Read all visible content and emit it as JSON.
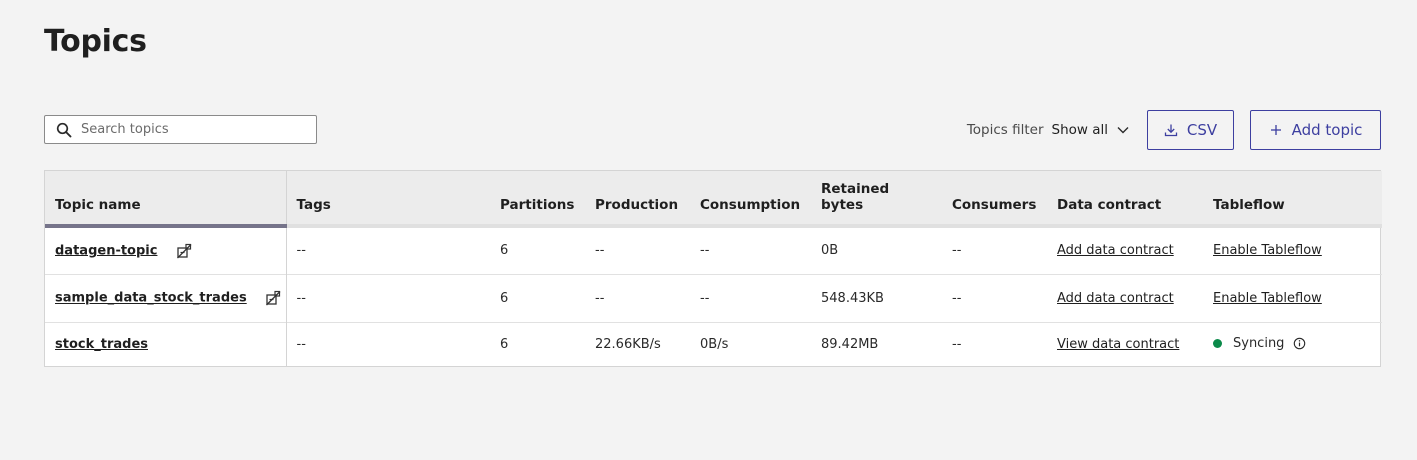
{
  "page": {
    "title": "Topics"
  },
  "search": {
    "placeholder": "Search topics",
    "value": ""
  },
  "filter": {
    "label": "Topics filter",
    "value": "Show all"
  },
  "buttons": {
    "csv": "CSV",
    "add_topic": "Add topic"
  },
  "colors": {
    "accent": "#3d3fa0",
    "syncing": "#0b8a4a",
    "background": "#f3f3f3"
  },
  "table": {
    "columns": [
      "Topic name",
      "Tags",
      "Partitions",
      "Production",
      "Consumption",
      "Retained bytes",
      "Consumers",
      "Data contract",
      "Tableflow"
    ],
    "rows": [
      {
        "name": "datagen-topic",
        "icon": "no-schema-icon",
        "tags": "--",
        "partitions": "6",
        "production": "--",
        "consumption": "--",
        "retained": "0B",
        "consumers": "--",
        "data_contract": "Add data contract",
        "tableflow": "Enable Tableflow"
      },
      {
        "name": "sample_data_stock_trades",
        "icon": "no-schema-icon",
        "tags": "--",
        "partitions": "6",
        "production": "--",
        "consumption": "--",
        "retained": "548.43KB",
        "consumers": "--",
        "data_contract": "Add data contract",
        "tableflow": "Enable Tableflow"
      },
      {
        "name": "stock_trades",
        "tags": "--",
        "partitions": "6",
        "production": "22.66KB/s",
        "consumption": "0B/s",
        "retained": "89.42MB",
        "consumers": "--",
        "data_contract": "View data contract",
        "tableflow": "Syncing"
      }
    ]
  }
}
